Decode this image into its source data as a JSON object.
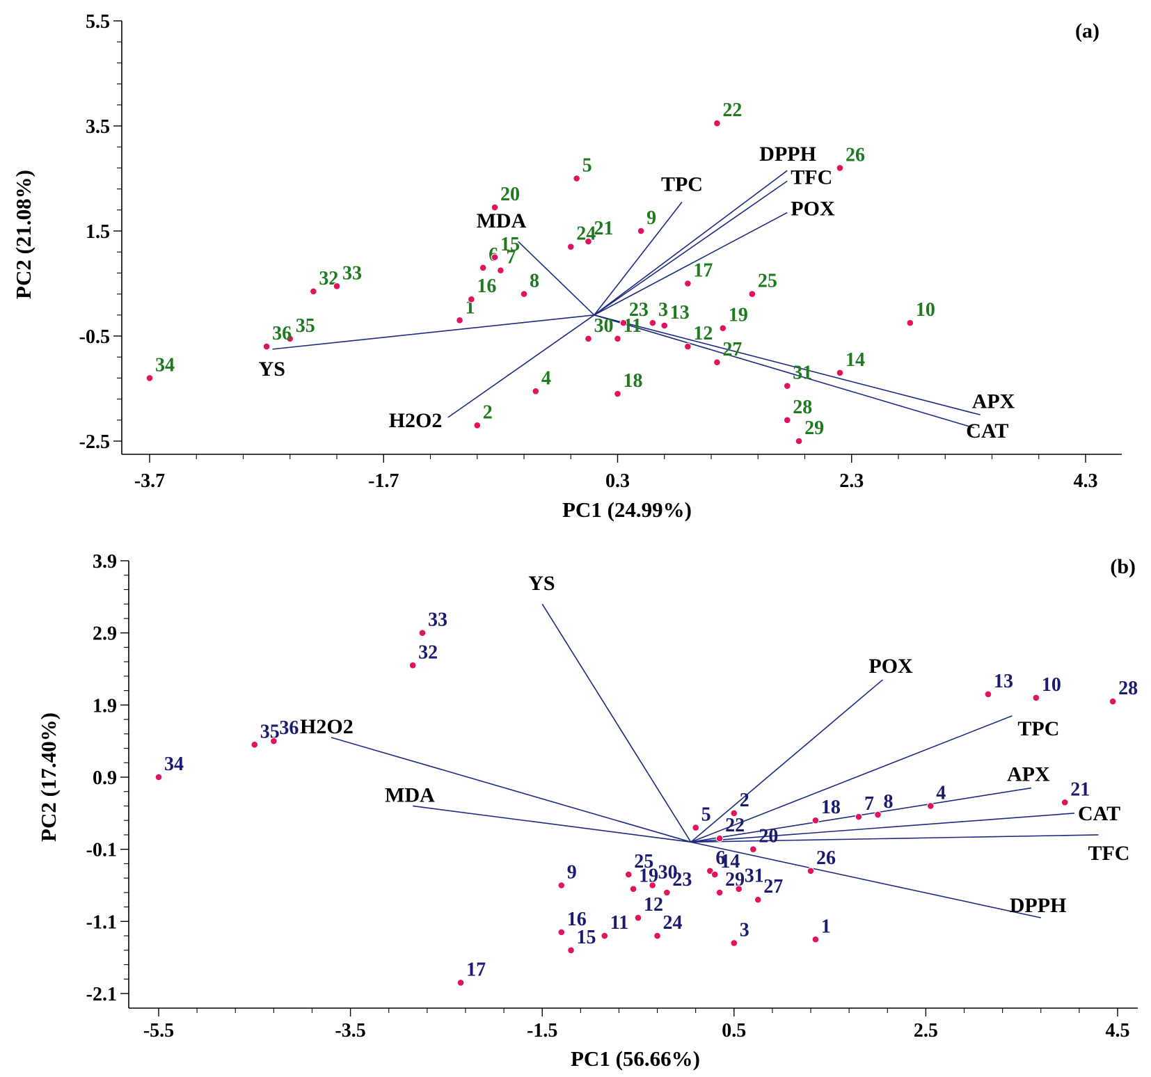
{
  "chart_data": [
    {
      "type": "scatter",
      "subtype": "biplot",
      "panel": "(a)",
      "xlabel": "PC1 (24.99%)",
      "ylabel": "PC2 (21.08%)",
      "xlim": [
        -3.7,
        4.3
      ],
      "ylim": [
        -2.5,
        5.5
      ],
      "xticks": [
        -3.7,
        -1.7,
        0.3,
        2.3,
        4.3
      ],
      "xtick_labels": [
        "-3.7",
        "-1.7",
        "0.3",
        "2.3",
        "4.3"
      ],
      "yticks": [
        -2.5,
        -0.5,
        1.5,
        3.5,
        5.5
      ],
      "ytick_labels": [
        "-2.5",
        "-0.5",
        "1.5",
        "3.5",
        "5.5"
      ],
      "point_color": "#e0135e",
      "label_color": "#1f7a1f",
      "vector_color": "#1b2a80",
      "vector_origin": [
        0.1,
        -0.1
      ],
      "points": [
        {
          "label": "1",
          "x": -1.05,
          "y": -0.2
        },
        {
          "label": "2",
          "x": -0.9,
          "y": -2.2
        },
        {
          "label": "3",
          "x": 0.6,
          "y": -0.25
        },
        {
          "label": "4",
          "x": -0.4,
          "y": -1.55
        },
        {
          "label": "5",
          "x": -0.05,
          "y": 2.5
        },
        {
          "label": "6",
          "x": -0.85,
          "y": 0.8
        },
        {
          "label": "7",
          "x": -0.7,
          "y": 0.75
        },
        {
          "label": "8",
          "x": -0.5,
          "y": 0.3
        },
        {
          "label": "9",
          "x": 0.5,
          "y": 1.5
        },
        {
          "label": "10",
          "x": 2.8,
          "y": -0.25
        },
        {
          "label": "11",
          "x": 0.3,
          "y": -0.55
        },
        {
          "label": "12",
          "x": 0.9,
          "y": -0.7
        },
        {
          "label": "13",
          "x": 0.7,
          "y": -0.3
        },
        {
          "label": "14",
          "x": 2.2,
          "y": -1.2
        },
        {
          "label": "15",
          "x": -0.75,
          "y": 1.0
        },
        {
          "label": "16",
          "x": -0.95,
          "y": 0.2
        },
        {
          "label": "17",
          "x": 0.9,
          "y": 0.5
        },
        {
          "label": "18",
          "x": 0.3,
          "y": -1.6
        },
        {
          "label": "19",
          "x": 1.2,
          "y": -0.35
        },
        {
          "label": "20",
          "x": -0.75,
          "y": 1.95
        },
        {
          "label": "21",
          "x": 0.05,
          "y": 1.3
        },
        {
          "label": "22",
          "x": 1.15,
          "y": 3.55
        },
        {
          "label": "23",
          "x": 0.35,
          "y": -0.25
        },
        {
          "label": "24",
          "x": -0.1,
          "y": 1.2
        },
        {
          "label": "25",
          "x": 1.45,
          "y": 0.3
        },
        {
          "label": "26",
          "x": 2.2,
          "y": 2.7
        },
        {
          "label": "27",
          "x": 1.15,
          "y": -1.0
        },
        {
          "label": "28",
          "x": 1.75,
          "y": -2.1
        },
        {
          "label": "29",
          "x": 1.85,
          "y": -2.5
        },
        {
          "label": "30",
          "x": 0.05,
          "y": -0.55
        },
        {
          "label": "31",
          "x": 1.75,
          "y": -1.45
        },
        {
          "label": "32",
          "x": -2.3,
          "y": 0.35
        },
        {
          "label": "33",
          "x": -2.1,
          "y": 0.45
        },
        {
          "label": "34",
          "x": -3.7,
          "y": -1.3
        },
        {
          "label": "35",
          "x": -2.5,
          "y": -0.55
        },
        {
          "label": "36",
          "x": -2.7,
          "y": -0.7
        }
      ],
      "vectors": [
        {
          "label": "YS",
          "x": -2.65,
          "y": -0.75
        },
        {
          "label": "H2O2",
          "x": -1.15,
          "y": -2.05
        },
        {
          "label": "MDA",
          "x": -0.55,
          "y": 1.3
        },
        {
          "label": "TPC",
          "x": 0.85,
          "y": 2.05
        },
        {
          "label": "DPPH",
          "x": 1.75,
          "y": 2.65
        },
        {
          "label": "TFC",
          "x": 1.75,
          "y": 2.45
        },
        {
          "label": "POX",
          "x": 1.75,
          "y": 1.85
        },
        {
          "label": "APX",
          "x": 3.4,
          "y": -2.0
        },
        {
          "label": "CAT",
          "x": 3.35,
          "y": -2.25
        }
      ]
    },
    {
      "type": "scatter",
      "subtype": "biplot",
      "panel": "(b)",
      "xlabel": "PC1 (56.66%)",
      "ylabel": "PC2 (17.40%)",
      "xlim": [
        -5.5,
        4.5
      ],
      "ylim": [
        -2.1,
        3.9
      ],
      "xticks": [
        -5.5,
        -3.5,
        -1.5,
        0.5,
        2.5,
        4.5
      ],
      "xtick_labels": [
        "-5.5",
        "-3.5",
        "-1.5",
        "0.5",
        "2.5",
        "4.5"
      ],
      "yticks": [
        -2.1,
        -1.1,
        -0.1,
        0.9,
        1.9,
        2.9,
        3.9
      ],
      "ytick_labels": [
        "-2.1",
        "-1.1",
        "-0.1",
        "0.9",
        "1.9",
        "2.9",
        "3.9"
      ],
      "point_color": "#e0135e",
      "label_color": "#1a1a70",
      "vector_color": "#1b2a80",
      "vector_origin": [
        0.05,
        0.0
      ],
      "points": [
        {
          "label": "1",
          "x": 1.35,
          "y": -1.35
        },
        {
          "label": "2",
          "x": 0.5,
          "y": 0.4
        },
        {
          "label": "3",
          "x": 0.5,
          "y": -1.4
        },
        {
          "label": "4",
          "x": 2.55,
          "y": 0.5
        },
        {
          "label": "5",
          "x": 0.1,
          "y": 0.2
        },
        {
          "label": "6",
          "x": 0.25,
          "y": -0.4
        },
        {
          "label": "7",
          "x": 1.8,
          "y": 0.35
        },
        {
          "label": "8",
          "x": 2.0,
          "y": 0.38
        },
        {
          "label": "9",
          "x": -1.3,
          "y": -0.6
        },
        {
          "label": "10",
          "x": 3.65,
          "y": 2.0
        },
        {
          "label": "11",
          "x": -0.85,
          "y": -1.3
        },
        {
          "label": "12",
          "x": -0.5,
          "y": -1.05
        },
        {
          "label": "13",
          "x": 3.15,
          "y": 2.05
        },
        {
          "label": "14",
          "x": 0.3,
          "y": -0.45
        },
        {
          "label": "15",
          "x": -1.2,
          "y": -1.5
        },
        {
          "label": "16",
          "x": -1.3,
          "y": -1.25
        },
        {
          "label": "17",
          "x": -2.35,
          "y": -1.95
        },
        {
          "label": "18",
          "x": 1.35,
          "y": 0.3
        },
        {
          "label": "19",
          "x": -0.55,
          "y": -0.65
        },
        {
          "label": "20",
          "x": 0.7,
          "y": -0.1
        },
        {
          "label": "21",
          "x": 3.95,
          "y": 0.55
        },
        {
          "label": "22",
          "x": 0.35,
          "y": 0.05
        },
        {
          "label": "23",
          "x": -0.2,
          "y": -0.7
        },
        {
          "label": "24",
          "x": -0.3,
          "y": -1.3
        },
        {
          "label": "25",
          "x": -0.6,
          "y": -0.45
        },
        {
          "label": "26",
          "x": 1.3,
          "y": -0.4
        },
        {
          "label": "27",
          "x": 0.75,
          "y": -0.8
        },
        {
          "label": "28",
          "x": 4.45,
          "y": 1.95
        },
        {
          "label": "29",
          "x": 0.35,
          "y": -0.7
        },
        {
          "label": "30",
          "x": -0.35,
          "y": -0.6
        },
        {
          "label": "31",
          "x": 0.55,
          "y": -0.65
        },
        {
          "label": "32",
          "x": -2.85,
          "y": 2.45
        },
        {
          "label": "33",
          "x": -2.75,
          "y": 2.9
        },
        {
          "label": "34",
          "x": -5.5,
          "y": 0.9
        },
        {
          "label": "35",
          "x": -4.5,
          "y": 1.35
        },
        {
          "label": "36",
          "x": -4.3,
          "y": 1.4
        }
      ],
      "vectors": [
        {
          "label": "YS",
          "x": -1.5,
          "y": 3.3
        },
        {
          "label": "H2O2",
          "x": -3.7,
          "y": 1.45
        },
        {
          "label": "MDA",
          "x": -2.85,
          "y": 0.5
        },
        {
          "label": "POX",
          "x": 2.05,
          "y": 2.25
        },
        {
          "label": "TPC",
          "x": 3.4,
          "y": 1.75
        },
        {
          "label": "APX",
          "x": 3.6,
          "y": 0.75
        },
        {
          "label": "CAT",
          "x": 4.05,
          "y": 0.4
        },
        {
          "label": "TFC",
          "x": 4.3,
          "y": 0.1
        },
        {
          "label": "DPPH",
          "x": 3.7,
          "y": -1.05
        }
      ]
    }
  ]
}
